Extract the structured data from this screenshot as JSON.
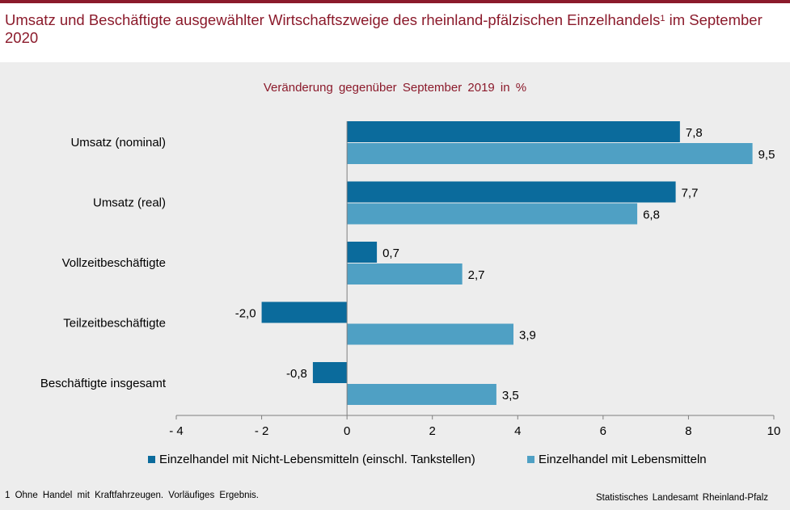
{
  "header": {
    "title": "Umsatz und Beschäftigte ausgewählter Wirtschaftszweige des rheinland-pfälzischen Einzelhandels",
    "title_sup": "1",
    "title_suffix": " im September 2020"
  },
  "chart_data": {
    "type": "bar",
    "orientation": "horizontal",
    "subtitle": "Veränderung gegenüber September 2019 in %",
    "categories": [
      "Umsatz (nominal)",
      "Umsatz (real)",
      "Vollzeitbeschäftigte",
      "Teilzeitbeschäftigte",
      "Beschäftigte insgesamt"
    ],
    "series": [
      {
        "name": "Einzelhandel mit Nicht-Lebensmitteln (einschl. Tankstellen)",
        "color": "#0b6b9c",
        "values": [
          7.8,
          7.7,
          0.7,
          -2.0,
          -0.8
        ],
        "labels": [
          "7,8",
          "7,7",
          "0,7",
          "-2,0",
          "-0,8"
        ]
      },
      {
        "name": "Einzelhandel mit Lebensmitteln",
        "color": "#4fa0c4",
        "values": [
          9.5,
          6.8,
          2.7,
          3.9,
          3.5
        ],
        "labels": [
          "9,5",
          "6,8",
          "2,7",
          "3,9",
          "3,5"
        ]
      }
    ],
    "xlim": [
      -4,
      10
    ],
    "xticks": [
      -4,
      -2,
      0,
      2,
      4,
      6,
      8,
      10
    ],
    "xtick_labels": [
      "- 4",
      "- 2",
      "0",
      "2",
      "4",
      "6",
      "8",
      "10"
    ],
    "grid": false,
    "legend_position": "bottom"
  },
  "footer": {
    "footnote": "1 Ohne Handel mit Kraftfahrzeugen. Vorläufiges Ergebnis.",
    "source": "Statistisches Landesamt Rheinland-Pfalz"
  },
  "colors": {
    "accent": "#8b1a2b",
    "panel": "#ededed"
  }
}
